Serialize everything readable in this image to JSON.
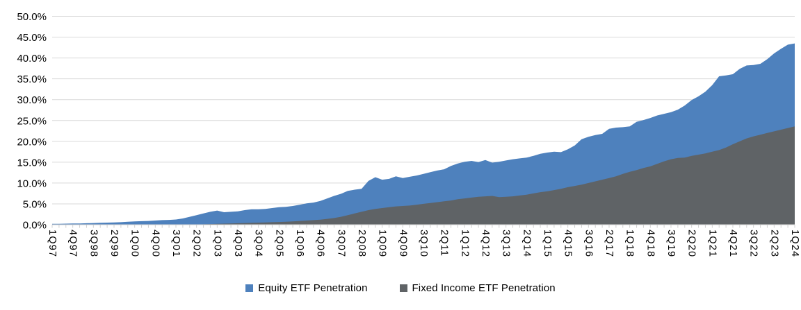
{
  "chart_data": {
    "type": "area",
    "title": "",
    "legend_position": "bottom",
    "grid": "horizontal",
    "y_axis": {
      "min": 0,
      "max": 50,
      "step": 5,
      "tick_labels": [
        "0.0%",
        "5.0%",
        "10.0%",
        "15.0%",
        "20.0%",
        "25.0%",
        "30.0%",
        "35.0%",
        "40.0%",
        "45.0%",
        "50.0%"
      ]
    },
    "x_axis": {
      "unit": "quarter",
      "start": "1Q97",
      "end": "1Q24",
      "num_points": 109,
      "label_every_n_quarters": 3,
      "tick_labels": [
        "1Q97",
        "4Q97",
        "3Q98",
        "2Q99",
        "1Q00",
        "4Q00",
        "3Q01",
        "2Q02",
        "1Q03",
        "4Q03",
        "3Q04",
        "2Q05",
        "1Q06",
        "4Q06",
        "3Q07",
        "2Q08",
        "1Q09",
        "4Q09",
        "3Q10",
        "2Q11",
        "1Q12",
        "4Q12",
        "3Q13",
        "2Q14",
        "1Q15",
        "4Q15",
        "3Q16",
        "2Q17",
        "1Q18",
        "4Q18",
        "3Q19",
        "2Q20",
        "1Q21",
        "4Q21",
        "3Q22",
        "2Q23",
        "1Q24"
      ]
    },
    "series": [
      {
        "name": "Equity ETF Penetration",
        "color": "#4E81BD",
        "values": [
          0.2,
          0.2,
          0.25,
          0.3,
          0.3,
          0.35,
          0.4,
          0.45,
          0.5,
          0.55,
          0.6,
          0.7,
          0.8,
          0.85,
          0.9,
          1.0,
          1.1,
          1.15,
          1.25,
          1.5,
          1.9,
          2.3,
          2.7,
          3.1,
          3.4,
          3.0,
          3.1,
          3.2,
          3.5,
          3.7,
          3.7,
          3.8,
          4.0,
          4.2,
          4.3,
          4.5,
          4.8,
          5.1,
          5.3,
          5.7,
          6.3,
          6.9,
          7.4,
          8.1,
          8.4,
          8.6,
          10.5,
          11.4,
          10.8,
          11.0,
          11.6,
          11.2,
          11.5,
          11.8,
          12.2,
          12.6,
          13.0,
          13.3,
          14.1,
          14.7,
          15.1,
          15.3,
          15.0,
          15.5,
          14.9,
          15.1,
          15.4,
          15.7,
          15.9,
          16.1,
          16.5,
          17.0,
          17.3,
          17.5,
          17.4,
          18.1,
          19.0,
          20.5,
          21.1,
          21.5,
          21.8,
          23.0,
          23.3,
          23.4,
          23.6,
          24.7,
          25.1,
          25.6,
          26.2,
          26.6,
          27.0,
          27.6,
          28.6,
          29.9,
          30.8,
          31.9,
          33.5,
          35.6,
          35.8,
          36.1,
          37.4,
          38.2,
          38.3,
          38.6,
          39.7,
          41.1,
          42.2,
          43.2,
          43.5
        ]
      },
      {
        "name": "Fixed Income ETF Penetration",
        "color": "#5F6366",
        "values": [
          0,
          0,
          0,
          0,
          0,
          0,
          0,
          0,
          0,
          0,
          0,
          0,
          0,
          0,
          0,
          0,
          0,
          0,
          0,
          0,
          0,
          0.05,
          0.1,
          0.15,
          0.2,
          0.25,
          0.3,
          0.35,
          0.4,
          0.45,
          0.5,
          0.55,
          0.6,
          0.65,
          0.7,
          0.8,
          0.9,
          1.0,
          1.1,
          1.2,
          1.4,
          1.6,
          1.9,
          2.3,
          2.7,
          3.1,
          3.5,
          3.8,
          4.0,
          4.2,
          4.4,
          4.5,
          4.6,
          4.8,
          5.0,
          5.2,
          5.4,
          5.6,
          5.8,
          6.1,
          6.3,
          6.5,
          6.7,
          6.8,
          6.9,
          6.6,
          6.7,
          6.8,
          7.0,
          7.2,
          7.5,
          7.8,
          8.0,
          8.3,
          8.6,
          9.0,
          9.3,
          9.6,
          10.0,
          10.4,
          10.8,
          11.2,
          11.6,
          12.2,
          12.7,
          13.1,
          13.6,
          14.0,
          14.6,
          15.2,
          15.7,
          16.0,
          16.1,
          16.5,
          16.8,
          17.1,
          17.5,
          17.9,
          18.5,
          19.3,
          20.0,
          20.7,
          21.2,
          21.6,
          22.0,
          22.4,
          22.8,
          23.2,
          23.6
        ]
      }
    ],
    "colors": {
      "gridline": "#D9D9D9",
      "axis_line": "#D0D0D0",
      "tick_mark": "#D0D0D0",
      "label_text": "#000000"
    }
  }
}
